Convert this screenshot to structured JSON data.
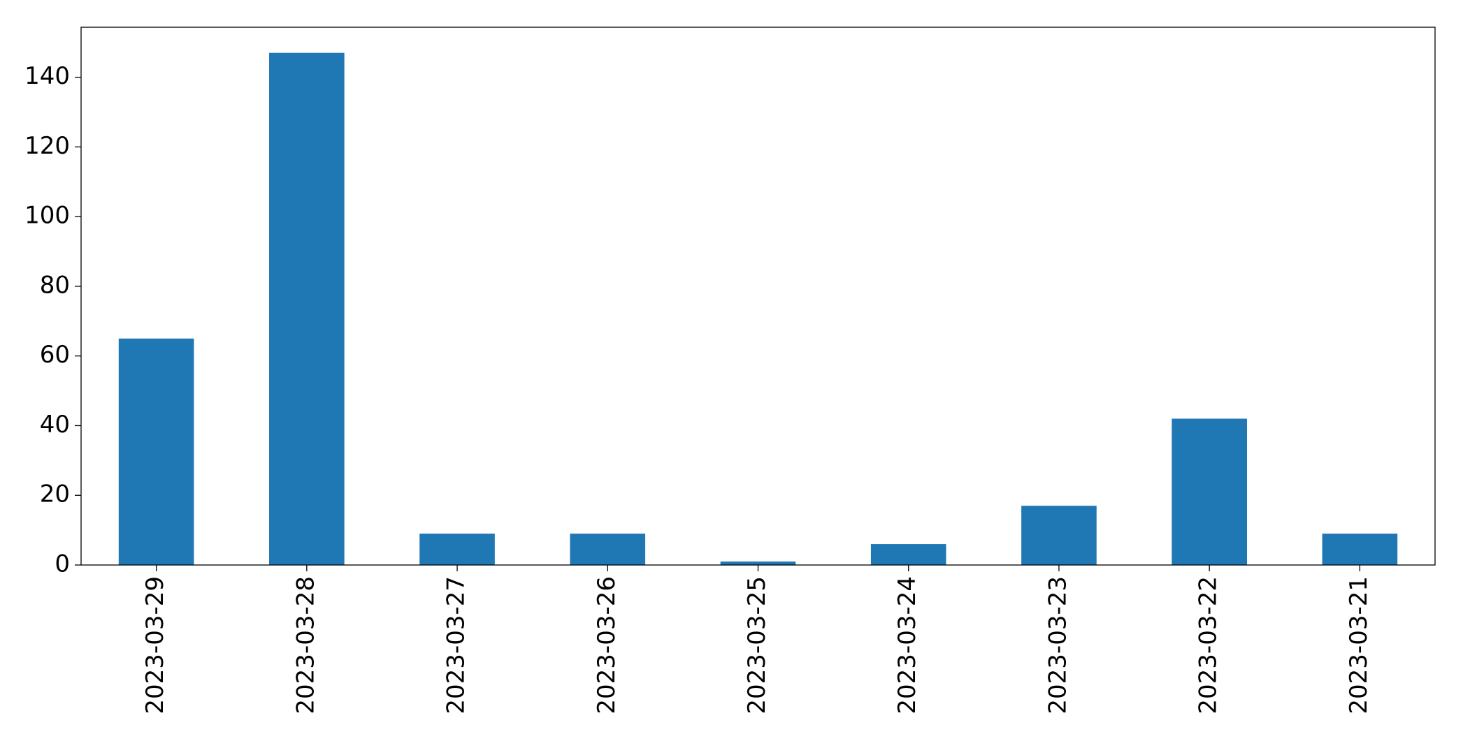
{
  "chart_data": {
    "type": "bar",
    "categories": [
      "2023-03-29",
      "2023-03-28",
      "2023-03-27",
      "2023-03-26",
      "2023-03-25",
      "2023-03-24",
      "2023-03-23",
      "2023-03-22",
      "2023-03-21"
    ],
    "values": [
      65,
      147,
      9,
      9,
      1,
      6,
      17,
      42,
      9
    ],
    "color": "#1f77b4",
    "ylim": [
      0,
      154.35
    ],
    "yticks": [
      0,
      20,
      40,
      60,
      80,
      100,
      120,
      140
    ],
    "grid": false
  }
}
